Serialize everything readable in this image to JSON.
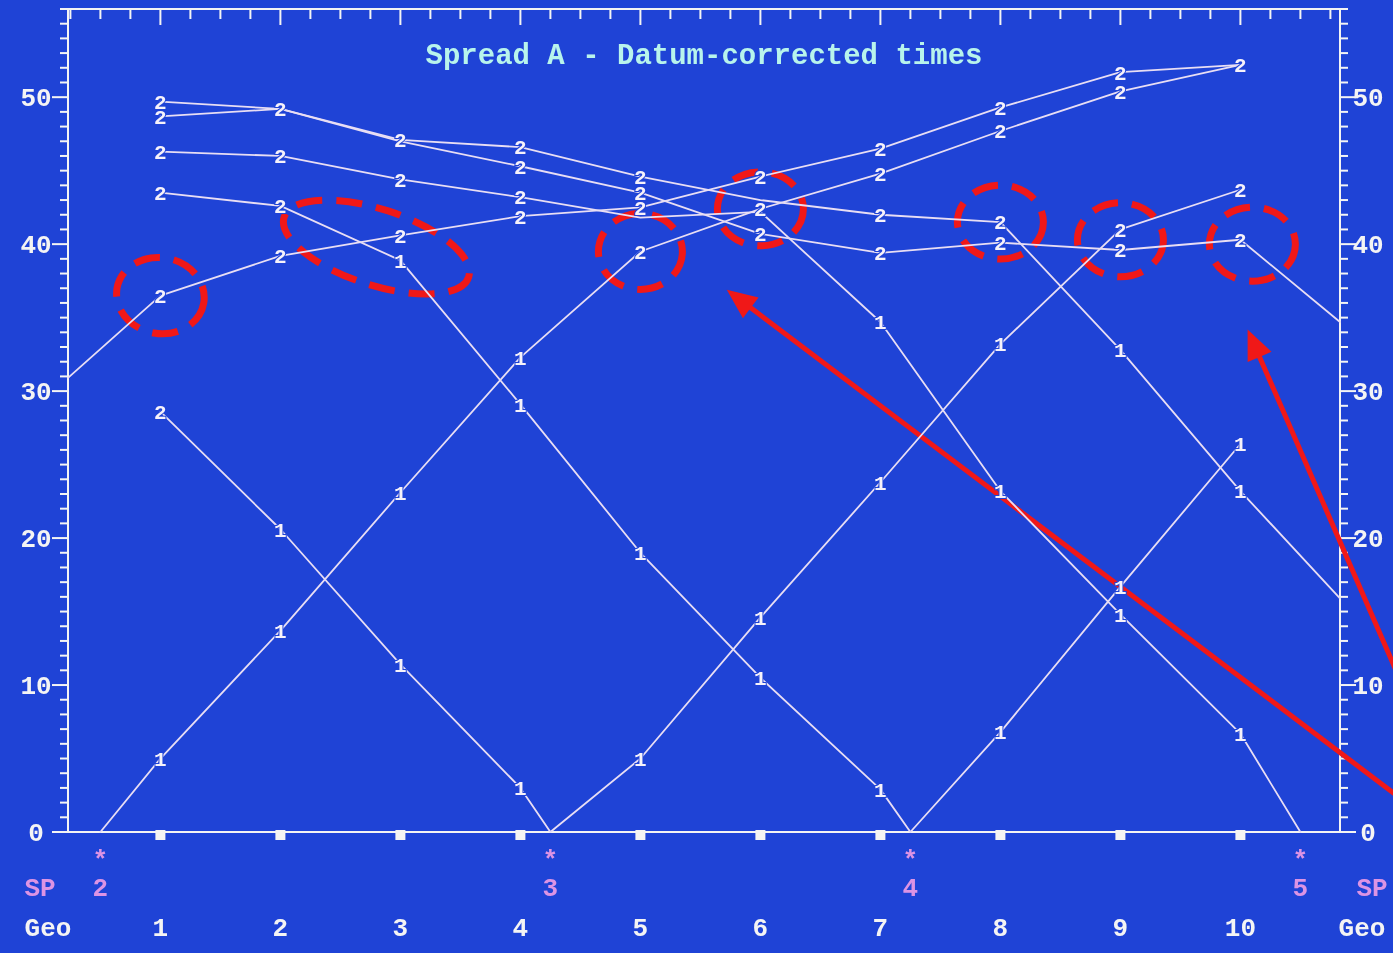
{
  "chart_data": {
    "type": "line",
    "title": "Spread A - Datum-corrected times",
    "xlabel": "Geo",
    "xlim": [
      0.23,
      10.83
    ],
    "xticks": [
      1,
      2,
      3,
      4,
      5,
      6,
      7,
      8,
      9,
      10
    ],
    "ylim": [
      0,
      56
    ],
    "yticks": [
      0,
      10,
      20,
      30,
      40,
      50
    ],
    "y2lim": [
      0,
      56
    ],
    "y2ticks": [
      0,
      10,
      20,
      30,
      40,
      50
    ],
    "grid": false,
    "series": [
      {
        "color": "#e8def4",
        "x": [
          0.23,
          1,
          2,
          3,
          4,
          5,
          6,
          7,
          8,
          9,
          10
        ],
        "values": [
          30.9,
          36.5,
          39.2,
          40.6,
          41.9,
          42.5,
          44.6,
          46.5,
          49.3,
          51.7,
          52.2
        ]
      },
      {
        "color": "#e8def4",
        "x": [
          0.5,
          1,
          2,
          3,
          4,
          5,
          6,
          7,
          8,
          9,
          10
        ],
        "values": [
          0,
          5.0,
          13.7,
          23.1,
          32.3,
          39.5,
          42.4,
          44.8,
          47.7,
          50.4,
          52.2
        ]
      },
      {
        "color": "#e8def4",
        "x": [
          1,
          2,
          3,
          4,
          4.25
        ],
        "values": [
          28.6,
          20.6,
          11.4,
          3.0,
          0
        ]
      },
      {
        "color": "#e8def4",
        "x": [
          4.25,
          5,
          6,
          7,
          8,
          9,
          10
        ],
        "values": [
          0,
          5.0,
          14.6,
          23.8,
          33.2,
          41.0,
          43.7
        ]
      },
      {
        "color": "#e8def4",
        "x": [
          1,
          2,
          3,
          4,
          5,
          6,
          7,
          7.25
        ],
        "values": [
          43.5,
          42.6,
          38.9,
          29.1,
          19.0,
          10.5,
          2.9,
          0
        ]
      },
      {
        "color": "#e8def4",
        "x": [
          7.25,
          8,
          9,
          10
        ],
        "values": [
          0,
          6.8,
          16.7,
          26.4
        ]
      },
      {
        "color": "#e8def4",
        "x": [
          1,
          2,
          3,
          4,
          5,
          6,
          7,
          8,
          9,
          10,
          10.5
        ],
        "values": [
          46.3,
          46.0,
          44.4,
          43.2,
          41.8,
          42.2,
          34.7,
          23.2,
          14.8,
          6.7,
          0
        ]
      },
      {
        "color": "#e8def4",
        "x": [
          1,
          2,
          3,
          4,
          5,
          6,
          7,
          8,
          9,
          10,
          10.83
        ],
        "values": [
          48.7,
          49.2,
          47.1,
          46.6,
          44.6,
          43.0,
          42.0,
          41.5,
          32.8,
          23.2,
          15.9
        ]
      },
      {
        "color": "#e8def4",
        "x": [
          1,
          2,
          3,
          4,
          5,
          6,
          7,
          8,
          9,
          10,
          10.83
        ],
        "values": [
          49.7,
          49.2,
          47.0,
          45.3,
          43.5,
          40.7,
          39.4,
          40.1,
          39.6,
          40.3,
          34.7
        ]
      },
      {
        "type": "scatter",
        "marker": "square",
        "color": "#f4f4f4",
        "x": [
          1,
          2,
          3,
          4,
          5,
          6,
          7,
          8,
          9,
          10
        ],
        "values": [
          0,
          0,
          0,
          0,
          0,
          0,
          0,
          0,
          0,
          0
        ]
      }
    ],
    "annotations": [
      "SP",
      {
        "text": "*\n2",
        "x": 0.5,
        "y": 0
      },
      {
        "text": "*\n3",
        "x": 4.25,
        "y": 0
      },
      {
        "text": "*\n4",
        "x": 7.25,
        "y": 0
      },
      {
        "text": "*\n5",
        "x": 10.5,
        "y": 0
      },
      {
        "text": "2",
        "x": 1,
        "y": 36.5
      },
      {
        "text": "2",
        "x": 2,
        "y": 39.2
      },
      {
        "text": "2",
        "x": 3,
        "y": 40.6
      },
      {
        "text": "2",
        "x": 4,
        "y": 41.9
      },
      {
        "text": "2",
        "x": 5,
        "y": 42.5
      },
      {
        "text": "2",
        "x": 6,
        "y": 44.6
      },
      {
        "text": "2",
        "x": 7,
        "y": 46.5
      },
      {
        "text": "2",
        "x": 8,
        "y": 49.3
      },
      {
        "text": "2",
        "x": 9,
        "y": 51.7
      },
      {
        "text": "2",
        "x": 10,
        "y": 52.2
      },
      {
        "text": "1",
        "x": 1,
        "y": 5.0
      },
      {
        "text": "1",
        "x": 2,
        "y": 13.7
      },
      {
        "text": "1",
        "x": 3,
        "y": 23.1
      },
      {
        "text": "1",
        "x": 4,
        "y": 32.3
      },
      {
        "text": "2",
        "x": 5,
        "y": 39.5
      },
      {
        "text": "2",
        "x": 6,
        "y": 42.4
      },
      {
        "text": "2",
        "x": 7,
        "y": 44.8
      },
      {
        "text": "2",
        "x": 8,
        "y": 47.7
      },
      {
        "text": "2",
        "x": 9,
        "y": 50.4
      },
      {
        "text": "2",
        "x": 1,
        "y": 28.6
      },
      {
        "text": "1",
        "x": 2,
        "y": 20.6
      },
      {
        "text": "1",
        "x": 3,
        "y": 11.4
      },
      {
        "text": "1",
        "x": 4,
        "y": 3.0
      },
      {
        "text": "1",
        "x": 5,
        "y": 5.0
      },
      {
        "text": "1",
        "x": 6,
        "y": 14.6
      },
      {
        "text": "1",
        "x": 7,
        "y": 23.8
      },
      {
        "text": "1",
        "x": 8,
        "y": 33.2
      },
      {
        "text": "2",
        "x": 9,
        "y": 41.0
      },
      {
        "text": "2",
        "x": 10,
        "y": 43.7
      },
      {
        "text": "2",
        "x": 1,
        "y": 43.5
      },
      {
        "text": "2",
        "x": 2,
        "y": 42.6
      },
      {
        "text": "1",
        "x": 3,
        "y": 38.9
      },
      {
        "text": "1",
        "x": 4,
        "y": 29.1
      },
      {
        "text": "1",
        "x": 5,
        "y": 19.0
      },
      {
        "text": "1",
        "x": 6,
        "y": 10.5
      },
      {
        "text": "1",
        "x": 7,
        "y": 2.9
      },
      {
        "text": "1",
        "x": 8,
        "y": 6.8
      },
      {
        "text": "1",
        "x": 9,
        "y": 16.7
      },
      {
        "text": "1",
        "x": 10,
        "y": 26.4
      },
      {
        "text": "2",
        "x": 1,
        "y": 46.3
      },
      {
        "text": "2",
        "x": 2,
        "y": 46.0
      },
      {
        "text": "2",
        "x": 3,
        "y": 44.4
      },
      {
        "text": "2",
        "x": 4,
        "y": 43.2
      },
      {
        "text": "1",
        "x": 7,
        "y": 34.7
      },
      {
        "text": "1",
        "x": 8,
        "y": 23.2
      },
      {
        "text": "1",
        "x": 9,
        "y": 14.8
      },
      {
        "text": "1",
        "x": 10,
        "y": 6.7
      },
      {
        "text": "2",
        "x": 1,
        "y": 48.7
      },
      {
        "text": "2",
        "x": 2,
        "y": 49.2
      },
      {
        "text": "2",
        "x": 3,
        "y": 47.1
      },
      {
        "text": "2",
        "x": 4,
        "y": 46.6
      },
      {
        "text": "2",
        "x": 5,
        "y": 44.6
      },
      {
        "text": "2",
        "x": 7,
        "y": 42.0
      },
      {
        "text": "2",
        "x": 8,
        "y": 41.5
      },
      {
        "text": "1",
        "x": 9,
        "y": 32.8
      },
      {
        "text": "1",
        "x": 10,
        "y": 23.2
      },
      {
        "text": "2",
        "x": 1,
        "y": 49.7
      },
      {
        "text": "2",
        "x": 4,
        "y": 45.3
      },
      {
        "text": "2",
        "x": 5,
        "y": 43.5
      },
      {
        "text": "2",
        "x": 6,
        "y": 40.7
      },
      {
        "text": "2",
        "x": 7,
        "y": 39.4
      },
      {
        "text": "2",
        "x": 8,
        "y": 40.1
      },
      {
        "text": "2",
        "x": 9,
        "y": 39.6
      },
      {
        "text": "2",
        "x": 10,
        "y": 40.3
      }
    ]
  }
}
